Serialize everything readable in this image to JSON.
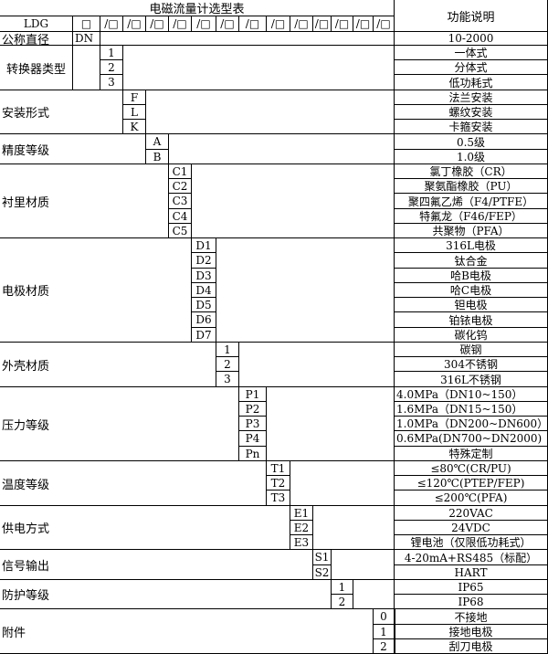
{
  "title": "电磁流量计选型表",
  "function_header": "功能说明",
  "model_prefix": "LDG",
  "first_slot": "□",
  "slot_label": "/□",
  "slot_count": 13,
  "nominal_diameter": {
    "label": "公称直径",
    "code": "DN",
    "desc": "10-2000"
  },
  "groups": [
    {
      "label": "转换器类型",
      "items": [
        {
          "code": "1",
          "desc": "一体式"
        },
        {
          "code": "2",
          "desc": "分体式"
        },
        {
          "code": "3",
          "desc": "低功耗式"
        }
      ]
    },
    {
      "label": "安装形式",
      "items": [
        {
          "code": "F",
          "desc": "法兰安装"
        },
        {
          "code": "L",
          "desc": "螺纹安装"
        },
        {
          "code": "K",
          "desc": "卡箍安装"
        }
      ]
    },
    {
      "label": "精度等级",
      "items": [
        {
          "code": "A",
          "desc": "0.5级"
        },
        {
          "code": "B",
          "desc": "1.0级"
        }
      ]
    },
    {
      "label": "衬里材质",
      "items": [
        {
          "code": "C1",
          "desc": "氯丁橡胶（CR）"
        },
        {
          "code": "C2",
          "desc": "聚氨酯橡胶（PU）"
        },
        {
          "code": "C3",
          "desc": "聚四氟乙烯（F4/PTFE）"
        },
        {
          "code": "C4",
          "desc": "特氟龙（F46/FEP）"
        },
        {
          "code": "C5",
          "desc": "共聚物（PFA）"
        }
      ]
    },
    {
      "label": "电极材质",
      "items": [
        {
          "code": "D1",
          "desc": "316L电极"
        },
        {
          "code": "D2",
          "desc": "钛合金"
        },
        {
          "code": "D3",
          "desc": "哈B电极"
        },
        {
          "code": "D4",
          "desc": "哈C电极"
        },
        {
          "code": "D5",
          "desc": "钽电极"
        },
        {
          "code": "D6",
          "desc": "铂铱电极"
        },
        {
          "code": "D7",
          "desc": "碳化钨"
        }
      ]
    },
    {
      "label": "外壳材质",
      "items": [
        {
          "code": "1",
          "desc": "碳钢"
        },
        {
          "code": "2",
          "desc": "304不锈钢"
        },
        {
          "code": "3",
          "desc": "316L不锈钢"
        }
      ]
    },
    {
      "label": "压力等级",
      "items": [
        {
          "code": "P1",
          "desc": "4.0MPa（DN10~150）"
        },
        {
          "code": "P2",
          "desc": "1.6MPa（DN15~150）"
        },
        {
          "code": "P3",
          "desc": "1.0MPa（DN200~DN600）"
        },
        {
          "code": "P4",
          "desc": "0.6MPa(DN700~DN2000)"
        },
        {
          "code": "Pn",
          "desc": "特殊定制"
        }
      ]
    },
    {
      "label": "温度等级",
      "items": [
        {
          "code": "T1",
          "desc": "≤80℃(CR/PU)"
        },
        {
          "code": "T2",
          "desc": "≤120℃(PTEP/FEP)"
        },
        {
          "code": "T3",
          "desc": "≤200℃(PFA)"
        }
      ]
    },
    {
      "label": "供电方式",
      "items": [
        {
          "code": "E1",
          "desc": "220VAC"
        },
        {
          "code": "E2",
          "desc": "24VDC"
        },
        {
          "code": "E3",
          "desc": "锂电池（仅限低功耗式）"
        }
      ]
    },
    {
      "label": "信号输出",
      "items": [
        {
          "code": "S1",
          "desc": "4-20mA+RS485（标配）"
        },
        {
          "code": "S2",
          "desc": "HART"
        }
      ]
    },
    {
      "label": "防护等级",
      "items": [
        {
          "code": "1",
          "desc": "IP65"
        },
        {
          "code": "2",
          "desc": "IP68"
        }
      ]
    },
    {
      "label": "附件",
      "items": [
        {
          "code": "0",
          "desc": "不接地"
        },
        {
          "code": "1",
          "desc": "接地电极"
        },
        {
          "code": "2",
          "desc": "刮刀电极"
        }
      ]
    }
  ]
}
